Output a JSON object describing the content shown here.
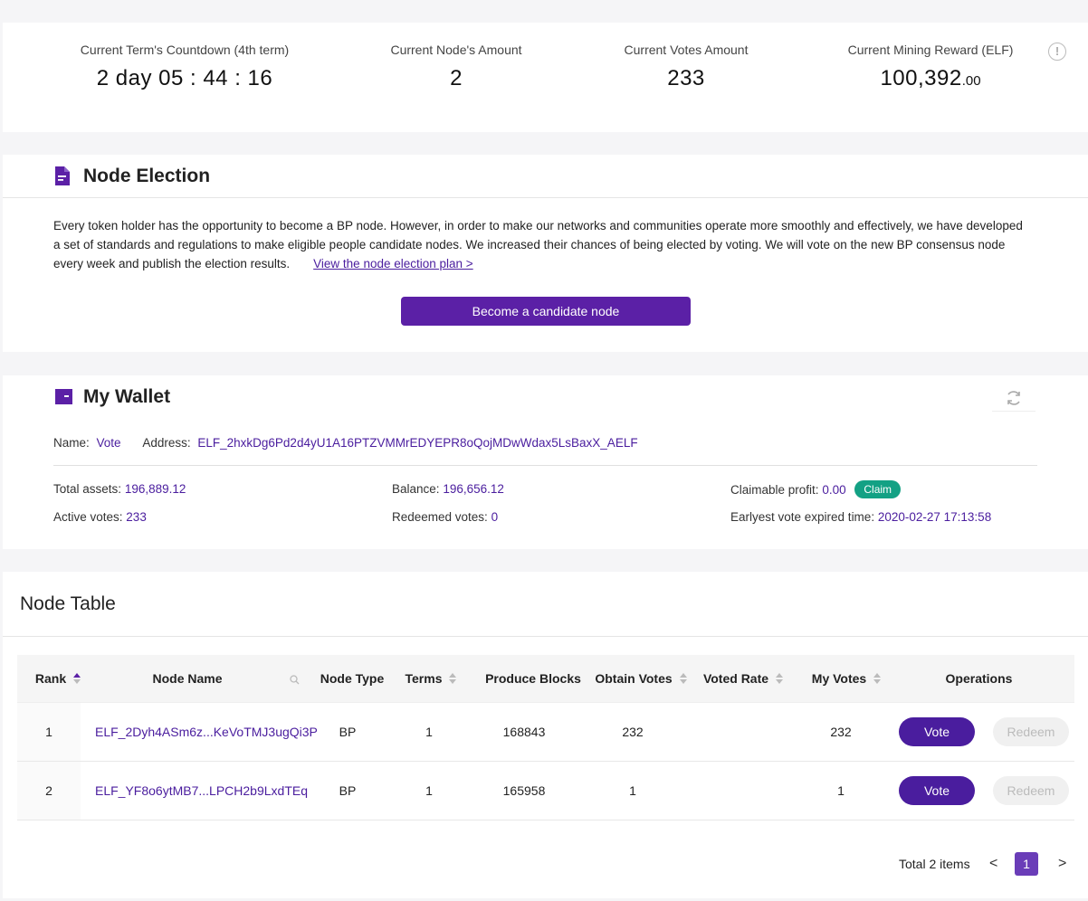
{
  "stats": {
    "term_countdown_label": "Current Term's Countdown (4th term)",
    "term_countdown_value": "2 day 05 : 44 : 16",
    "node_amount_label": "Current Node's Amount",
    "node_amount_value": "2",
    "votes_amount_label": "Current Votes Amount",
    "votes_amount_value": "233",
    "mining_reward_label": "Current Mining Reward (ELF)",
    "mining_reward_int": "100,392",
    "mining_reward_dec": ".00",
    "info_icon": "info-circle-icon"
  },
  "election": {
    "title": "Node Election",
    "icon": "document-icon",
    "description": "Every token holder has the opportunity to become a BP node. However, in order to make our networks and communities operate more smoothly and effectively, we have developed a set of standards and regulations to make eligible people candidate nodes. We increased their chances of being elected by voting. We will vote on the new BP consensus node every week and publish the election results.",
    "plan_link": "View the node election plan >",
    "candidate_button": "Become a candidate node"
  },
  "wallet": {
    "title": "My Wallet",
    "icon": "wallet-icon",
    "refresh_icon": "refresh-icon",
    "name_label": "Name:",
    "name_value": "Vote",
    "address_label": "Address:",
    "address_value": "ELF_2hxkDg6Pd2d4yU1A16PTZVMMrEDYEPR8oQojMDwWdax5LsBaxX_AELF",
    "total_assets_label": "Total assets:",
    "total_assets_value": "196,889.12",
    "balance_label": "Balance:",
    "balance_value": "196,656.12",
    "claimable_label": "Claimable profit:",
    "claimable_value": "0.00",
    "claim_button": "Claim",
    "active_votes_label": "Active votes:",
    "active_votes_value": "233",
    "redeemed_votes_label": "Redeemed votes:",
    "redeemed_votes_value": "0",
    "expire_label": "Earlyest vote expired time:",
    "expire_value": "2020-02-27 17:13:58"
  },
  "node_table": {
    "title": "Node Table",
    "columns": [
      "Rank",
      "Node Name",
      "Node Type",
      "Terms",
      "Produce Blocks",
      "Obtain Votes",
      "Voted Rate",
      "My Votes",
      "Operations"
    ],
    "rows": [
      {
        "rank": "1",
        "name": "ELF_2Dyh4ASm6z...KeVoTMJ3ugQi3P",
        "type": "BP",
        "terms": "1",
        "blocks": "168843",
        "votes": "232",
        "rate": "",
        "my_votes": "232",
        "vote_label": "Vote",
        "redeem_label": "Redeem"
      },
      {
        "rank": "2",
        "name": "ELF_YF8o6ytMB7...LPCH2b9LxdTEq",
        "type": "BP",
        "terms": "1",
        "blocks": "165958",
        "votes": "1",
        "rate": "",
        "my_votes": "1",
        "vote_label": "Vote",
        "redeem_label": "Redeem"
      }
    ],
    "pagination": {
      "total_text": "Total 2 items",
      "current_page": "1",
      "prev": "<",
      "next": ">"
    },
    "accent_color": "#5b20a6"
  }
}
